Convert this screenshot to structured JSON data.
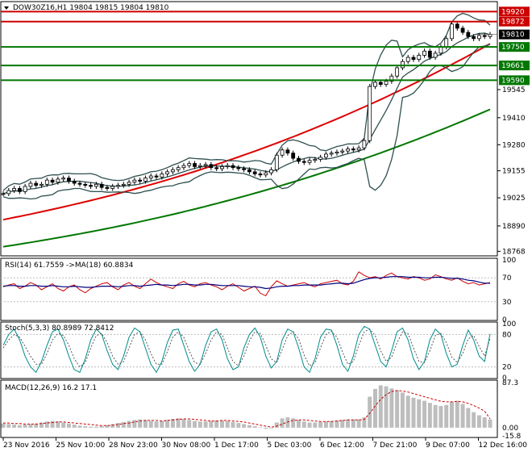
{
  "window": {
    "symbol_line": "DOW30Z16,H1  19804 19815 19804 19810"
  },
  "colors": {
    "background": "#ffffff",
    "frame": "#000000",
    "price_line_h": "#cc0000",
    "support_line_h": "#007700",
    "sma_red": "#dd0000",
    "sma_green": "#007700",
    "bollinger": "#2f4f4f",
    "candle": "#000000",
    "rsi_line": "#cc0000",
    "rsi_ma": "#000080",
    "stoch_main": "#008b8b",
    "stoch_signal": "#555555",
    "macd_hist": "#bdbdbd",
    "macd_signal": "#cc0000"
  },
  "chart_data": [
    {
      "type": "candlestick",
      "id": "price",
      "title": "DOW30Z16,H1",
      "ohlc_header": [
        19804,
        19815,
        19804,
        19810
      ],
      "ylim": [
        18750,
        19960
      ],
      "y_ticks": [
        19810,
        19750,
        19661,
        19590,
        19545,
        19410,
        19280,
        19155,
        19025,
        18890,
        18768
      ],
      "x_tick_labels": [
        "23 Nov 2016",
        "25 Nov 10:00",
        "28 Nov 23:00",
        "30 Nov 08:00",
        "1 Dec 17:00",
        "5 Dec 03:00",
        "6 Dec 12:00",
        "7 Dec 21:00",
        "9 Dec 07:00",
        "12 Dec 16:00"
      ],
      "horizontal_levels": [
        {
          "value": 19920,
          "color": "#cc0000",
          "label": "19920"
        },
        {
          "value": 19872,
          "color": "#cc0000",
          "label": "19872"
        },
        {
          "value": 19750,
          "color": "#007700",
          "label": "19750"
        },
        {
          "value": 19661,
          "color": "#007700",
          "label": "19661"
        },
        {
          "value": 19590,
          "color": "#007700",
          "label": "19590"
        }
      ],
      "current_price": 19810,
      "close_series": [
        19045,
        19060,
        19070,
        19055,
        19080,
        19095,
        19085,
        19090,
        19110,
        19100,
        19115,
        19120,
        19105,
        19095,
        19090,
        19085,
        19080,
        19090,
        19075,
        19070,
        19080,
        19085,
        19090,
        19100,
        19110,
        19105,
        19120,
        19130,
        19125,
        19140,
        19150,
        19160,
        19170,
        19180,
        19190,
        19175,
        19180,
        19185,
        19170,
        19165,
        19175,
        19180,
        19170,
        19165,
        19160,
        19150,
        19140,
        19135,
        19145,
        19160,
        19230,
        19255,
        19240,
        19215,
        19200,
        19195,
        19205,
        19210,
        19220,
        19235,
        19240,
        19245,
        19250,
        19260,
        19255,
        19265,
        19300,
        19560,
        19580,
        19570,
        19585,
        19610,
        19650,
        19680,
        19700,
        19690,
        19710,
        19730,
        19700,
        19720,
        19750,
        19790,
        19860,
        19840,
        19820,
        19800,
        19790,
        19805,
        19800,
        19810
      ],
      "series": [
        {
          "name": "SMA red",
          "color": "#dd0000",
          "start": 18920,
          "end": 19765
        },
        {
          "name": "SMA green",
          "color": "#007700",
          "start": 18790,
          "end": 19450
        }
      ]
    },
    {
      "type": "line",
      "id": "rsi",
      "label": "RSI(14) 61.7559  ->MA(18) 60.8834",
      "ylim": [
        0,
        100
      ],
      "y_ticks": [
        100,
        70,
        30,
        0
      ],
      "rsi": [
        55,
        58,
        60,
        52,
        56,
        62,
        58,
        50,
        55,
        60,
        52,
        48,
        55,
        58,
        50,
        45,
        52,
        56,
        60,
        62,
        55,
        50,
        58,
        62,
        56,
        52,
        60,
        68,
        62,
        58,
        55,
        52,
        60,
        64,
        58,
        55,
        60,
        62,
        58,
        55,
        50,
        56,
        60,
        54,
        48,
        52,
        56,
        44,
        40,
        55,
        65,
        60,
        56,
        58,
        60,
        62,
        58,
        55,
        60,
        62,
        64,
        66,
        60,
        58,
        64,
        80,
        74,
        70,
        72,
        68,
        74,
        78,
        72,
        70,
        68,
        72,
        70,
        66,
        68,
        75,
        72,
        68,
        66,
        70,
        64,
        60,
        62,
        58,
        60,
        62
      ],
      "rsi_ma": [
        56,
        57,
        57,
        56,
        56,
        57,
        57,
        56,
        56,
        57,
        56,
        55,
        55,
        56,
        55,
        54,
        54,
        55,
        56,
        56,
        56,
        55,
        56,
        57,
        57,
        56,
        57,
        58,
        59,
        58,
        58,
        57,
        58,
        59,
        59,
        58,
        58,
        59,
        59,
        58,
        57,
        57,
        57,
        57,
        56,
        55,
        55,
        54,
        52,
        53,
        55,
        56,
        56,
        57,
        57,
        58,
        58,
        58,
        58,
        59,
        60,
        61,
        61,
        60,
        61,
        64,
        67,
        69,
        70,
        70,
        71,
        72,
        72,
        72,
        71,
        71,
        71,
        70,
        70,
        71,
        71,
        70,
        69,
        69,
        68,
        66,
        65,
        63,
        61,
        61
      ]
    },
    {
      "type": "line",
      "id": "stochastic",
      "label": "Stoch(5,3,3) 80.8989 72.8412",
      "ylim": [
        0,
        100
      ],
      "y_ticks": [
        100,
        80,
        20,
        0
      ],
      "main": [
        60,
        80,
        90,
        70,
        40,
        20,
        10,
        30,
        60,
        85,
        90,
        70,
        40,
        15,
        10,
        35,
        70,
        90,
        80,
        50,
        25,
        15,
        40,
        75,
        92,
        85,
        55,
        25,
        10,
        30,
        65,
        88,
        90,
        60,
        30,
        12,
        25,
        60,
        85,
        90,
        70,
        35,
        15,
        20,
        55,
        80,
        92,
        75,
        40,
        18,
        30,
        70,
        90,
        85,
        55,
        20,
        10,
        35,
        75,
        90,
        88,
        60,
        25,
        12,
        40,
        80,
        95,
        90,
        60,
        30,
        20,
        50,
        85,
        92,
        70,
        35,
        15,
        30,
        70,
        90,
        80,
        45,
        20,
        25,
        60,
        88,
        70,
        40,
        30,
        81
      ],
      "signal": [
        55,
        70,
        80,
        75,
        58,
        40,
        25,
        25,
        45,
        70,
        82,
        78,
        60,
        35,
        20,
        28,
        55,
        78,
        82,
        65,
        40,
        25,
        30,
        55,
        80,
        85,
        70,
        45,
        25,
        25,
        48,
        75,
        85,
        75,
        50,
        28,
        25,
        45,
        70,
        85,
        80,
        55,
        30,
        22,
        40,
        68,
        85,
        82,
        60,
        35,
        28,
        52,
        78,
        85,
        72,
        42,
        22,
        28,
        55,
        80,
        86,
        75,
        48,
        25,
        30,
        60,
        85,
        90,
        78,
        50,
        30,
        38,
        65,
        85,
        82,
        55,
        30,
        28,
        50,
        78,
        82,
        65,
        38,
        28,
        45,
        72,
        78,
        58,
        40,
        73
      ]
    },
    {
      "type": "bar",
      "id": "macd",
      "label": "MACD(12,26,9) 16.2 17.1",
      "ylim": [
        -15.8,
        87.3
      ],
      "y_ticks": [
        87.3,
        0.0,
        -15.8
      ],
      "histogram": [
        8,
        7,
        6,
        5,
        6,
        7,
        8,
        10,
        12,
        13,
        12,
        10,
        8,
        6,
        4,
        3,
        2,
        2,
        3,
        5,
        7,
        9,
        11,
        13,
        15,
        16,
        15,
        13,
        12,
        13,
        15,
        17,
        18,
        17,
        15,
        13,
        12,
        12,
        13,
        14,
        14,
        13,
        11,
        9,
        7,
        5,
        3,
        1,
        -2,
        -1,
        10,
        18,
        20,
        18,
        15,
        12,
        10,
        10,
        11,
        12,
        13,
        14,
        15,
        16,
        16,
        16,
        20,
        60,
        75,
        82,
        80,
        76,
        72,
        68,
        62,
        58,
        55,
        52,
        48,
        44,
        42,
        44,
        50,
        52,
        46,
        38,
        30,
        24,
        20,
        16
      ],
      "signal": [
        9,
        9,
        8,
        8,
        7,
        7,
        7,
        8,
        9,
        10,
        11,
        11,
        10,
        9,
        8,
        7,
        6,
        5,
        4,
        4,
        5,
        6,
        8,
        9,
        11,
        13,
        14,
        14,
        14,
        13,
        14,
        15,
        16,
        17,
        17,
        16,
        15,
        14,
        13,
        13,
        14,
        14,
        13,
        12,
        11,
        9,
        7,
        5,
        3,
        1,
        3,
        7,
        11,
        14,
        15,
        15,
        14,
        13,
        12,
        12,
        12,
        13,
        14,
        15,
        15,
        15,
        16,
        28,
        42,
        55,
        64,
        70,
        72,
        71,
        69,
        66,
        63,
        60,
        57,
        54,
        51,
        50,
        50,
        51,
        50,
        47,
        43,
        38,
        32,
        17.1
      ]
    }
  ],
  "price_axis": {
    "current_label": "19810",
    "labels": [
      "19920",
      "19872",
      "19810",
      "19750",
      "19661",
      "19590",
      "19545",
      "19410",
      "19280",
      "19155",
      "19025",
      "18890",
      "18768"
    ]
  },
  "rsi_axis": {
    "labels": [
      "100",
      "70",
      "30",
      "0"
    ]
  },
  "stoch_axis": {
    "labels": [
      "100",
      "80",
      "20",
      "0"
    ]
  },
  "macd_axis": {
    "labels": [
      "87.3",
      "0.00",
      "-15.8"
    ]
  }
}
